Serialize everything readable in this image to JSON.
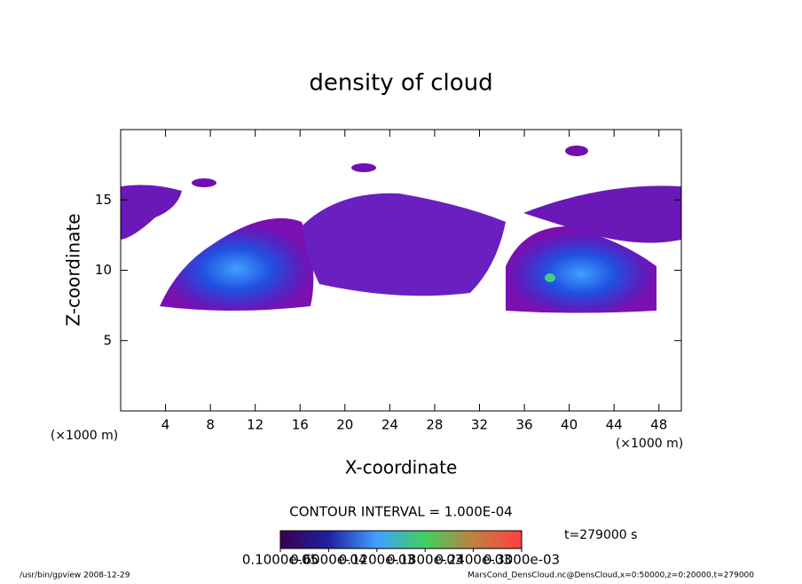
{
  "chart_data": {
    "type": "contour",
    "title": "density of cloud",
    "xlabel": "X-coordinate",
    "ylabel": "Z-coordinate",
    "x_unit_label": "(×1000 m)",
    "xlim": [
      0,
      50
    ],
    "ylim": [
      0,
      20
    ],
    "xticks": [
      4,
      8,
      12,
      16,
      20,
      24,
      28,
      32,
      36,
      40,
      44,
      48
    ],
    "yticks": [
      5,
      10,
      15
    ],
    "contour_interval_label": "CONTOUR INTERVAL = 1.000E-04",
    "time_label": "t=279000 s",
    "colorbar_ticks": [
      {
        "value": 1e-06,
        "label": "0.1000e-05"
      },
      {
        "value": 6e-05,
        "label": "0.6000e-04"
      },
      {
        "value": 0.00012,
        "label": "0.1200e-03"
      },
      {
        "value": 0.00018,
        "label": "0.1800e-03"
      },
      {
        "value": 0.00024,
        "label": "0.2400e-03"
      },
      {
        "value": 0.0003,
        "label": "0.3000e-03"
      }
    ],
    "footer_left": "/usr/bin/gpview  2008-12-29",
    "footer_right": "MarsCond_DensCloud.nc@DensCloud,x=0:50000,z=0:20000,t=279000"
  }
}
